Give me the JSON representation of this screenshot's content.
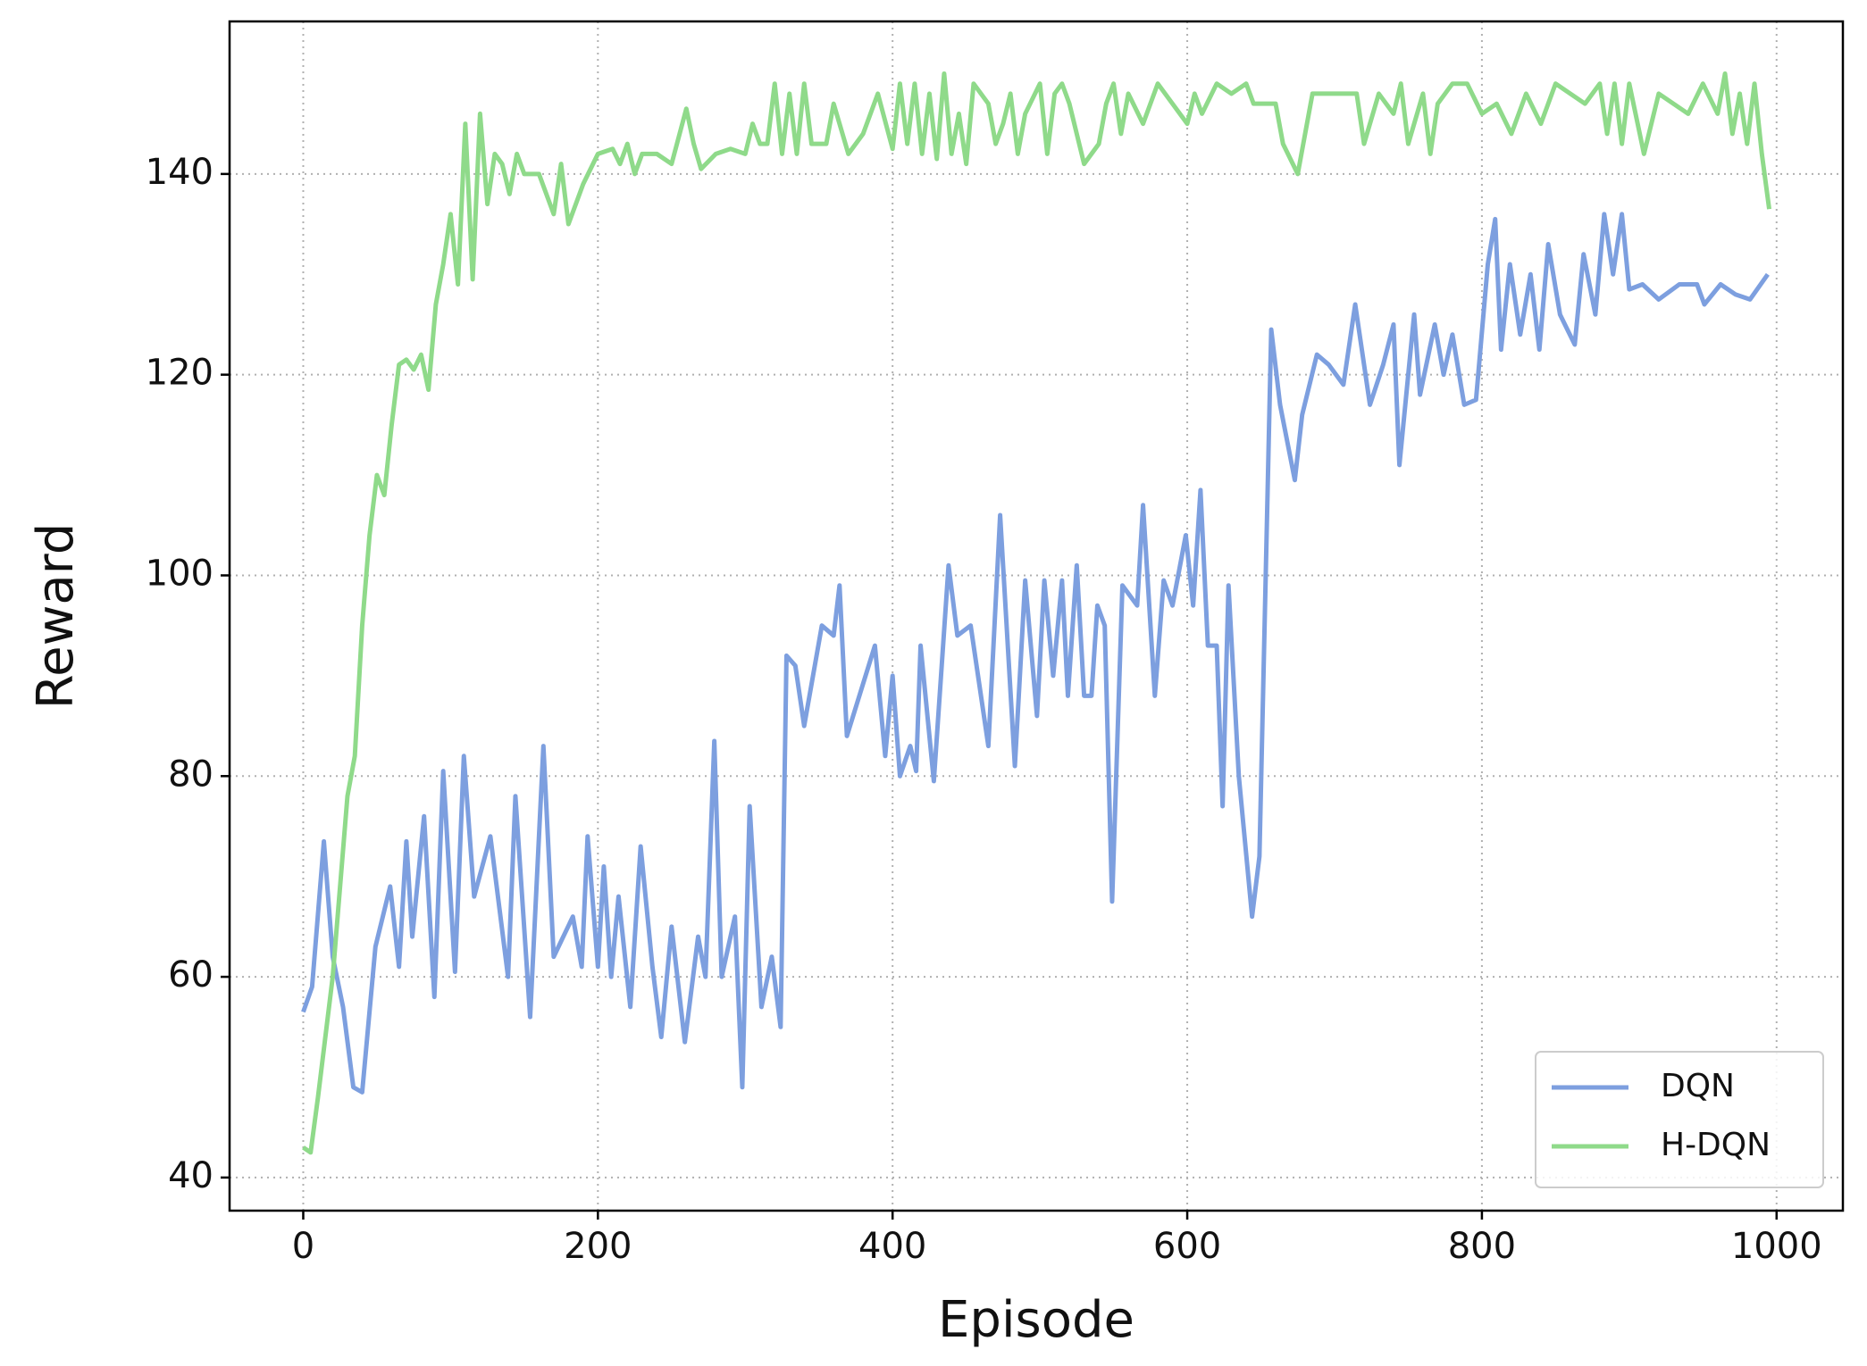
{
  "chart_data": {
    "type": "line",
    "xlabel": "Episode",
    "ylabel": "Reward",
    "xlim": [
      -50,
      1045
    ],
    "ylim": [
      36.7,
      155.2
    ],
    "xticks": [
      0,
      200,
      400,
      600,
      800,
      1000
    ],
    "yticks": [
      40,
      60,
      80,
      100,
      120,
      140
    ],
    "grid": true,
    "legend": "lower right",
    "series": [
      {
        "name": "DQN",
        "color": "#7d9fdf",
        "x": [
          0,
          6,
          14,
          20,
          27,
          34,
          40,
          49,
          59,
          65,
          70,
          74,
          82,
          89,
          95,
          103,
          109,
          116,
          127,
          139,
          144,
          154,
          163,
          170,
          183,
          189,
          193,
          200,
          204,
          209,
          214,
          222,
          229,
          237,
          243,
          250,
          259,
          268,
          273,
          279,
          284,
          293,
          298,
          303,
          311,
          318,
          324,
          328,
          334,
          340,
          352,
          360,
          364,
          369,
          388,
          395,
          400,
          405,
          412,
          416,
          419,
          428,
          438,
          444,
          453,
          465,
          473,
          483,
          490,
          498,
          503,
          509,
          515,
          519,
          525,
          530,
          535,
          539,
          544,
          549,
          556,
          566,
          570,
          578,
          584,
          590,
          599,
          604,
          609,
          614,
          620,
          624,
          628,
          635,
          644,
          649,
          657,
          663,
          673,
          678,
          688,
          696,
          706,
          714,
          724,
          733,
          740,
          744,
          754,
          758,
          768,
          774,
          780,
          788,
          796,
          804,
          809,
          813,
          819,
          826,
          833,
          839,
          845,
          853,
          863,
          869,
          877,
          883,
          889,
          895,
          900,
          909,
          920,
          934,
          946,
          951,
          962,
          972,
          982,
          994
        ],
        "values": [
          56.5,
          59,
          73.5,
          62,
          57,
          49,
          48.5,
          63,
          69,
          61,
          73.5,
          64,
          76,
          58,
          80.5,
          60.5,
          82,
          68,
          74,
          60,
          78,
          56,
          83,
          62,
          66,
          61,
          74,
          61,
          71,
          60,
          68,
          57,
          73,
          61,
          54,
          65,
          53.5,
          64,
          60,
          83.5,
          60,
          66,
          49,
          77,
          57,
          62,
          55,
          92,
          91,
          85,
          95,
          94,
          99,
          84,
          93,
          82,
          90,
          80,
          83,
          80.5,
          93,
          79.5,
          101,
          94,
          95,
          83,
          106,
          81,
          99.5,
          86,
          99.5,
          90,
          99.5,
          88,
          101,
          88,
          88,
          97,
          95,
          67.5,
          99,
          97,
          107,
          88,
          99.5,
          97,
          104,
          97,
          108.5,
          93,
          93,
          77,
          99,
          80,
          66,
          72,
          124.5,
          117,
          109.5,
          116,
          122,
          121,
          119,
          127,
          117,
          121,
          125,
          111,
          126,
          118,
          125,
          120,
          124,
          117,
          117.5,
          131,
          135.5,
          122.5,
          131,
          124,
          130,
          122.5,
          133,
          126,
          123,
          132,
          126,
          136,
          130,
          136,
          128.5,
          129,
          127.5,
          129,
          129,
          127,
          129,
          128,
          127.5,
          130
        ]
      },
      {
        "name": "H-DQN",
        "color": "#8fda8a",
        "x": [
          0,
          5,
          10,
          20,
          30,
          35,
          40,
          45,
          50,
          55,
          60,
          65,
          70,
          75,
          80,
          85,
          90,
          95,
          100,
          105,
          110,
          115,
          120,
          125,
          130,
          135,
          140,
          145,
          150,
          160,
          170,
          175,
          180,
          190,
          200,
          210,
          215,
          220,
          225,
          230,
          240,
          250,
          260,
          265,
          270,
          280,
          290,
          300,
          305,
          310,
          315,
          320,
          325,
          330,
          335,
          340,
          345,
          355,
          360,
          370,
          380,
          390,
          400,
          405,
          410,
          415,
          420,
          425,
          430,
          435,
          440,
          445,
          450,
          455,
          465,
          470,
          475,
          480,
          485,
          490,
          500,
          505,
          510,
          515,
          520,
          530,
          540,
          545,
          550,
          555,
          560,
          570,
          580,
          590,
          600,
          605,
          610,
          620,
          630,
          640,
          645,
          660,
          665,
          675,
          685,
          695,
          705,
          715,
          720,
          730,
          740,
          745,
          750,
          760,
          765,
          770,
          780,
          790,
          800,
          810,
          820,
          830,
          840,
          850,
          860,
          870,
          880,
          885,
          890,
          895,
          900,
          910,
          920,
          930,
          940,
          950,
          960,
          965,
          970,
          975,
          980,
          985,
          990,
          995
        ],
        "values": [
          43,
          42.5,
          48,
          60,
          78,
          82,
          95,
          104,
          110,
          108,
          115,
          121,
          121.5,
          120.5,
          122,
          118.5,
          127,
          131,
          136,
          129,
          145,
          129.5,
          146,
          137,
          142,
          141,
          138,
          142,
          140,
          140,
          136,
          141,
          135,
          139,
          142,
          142.5,
          141,
          143,
          140,
          142,
          142,
          141,
          146.5,
          143,
          140.5,
          142,
          142.5,
          142,
          145,
          143,
          143,
          149,
          142,
          148,
          142,
          149,
          143,
          143,
          147,
          142,
          144,
          148,
          142.5,
          149,
          143,
          149,
          142,
          148,
          141.5,
          150,
          142,
          146,
          141,
          149,
          147,
          143,
          145,
          148,
          142,
          146,
          149,
          142,
          148,
          149,
          147,
          141,
          143,
          147,
          149,
          144,
          148,
          145,
          149,
          147,
          145,
          148,
          146,
          149,
          148,
          149,
          147,
          147,
          143,
          140,
          148,
          148,
          148,
          148,
          143,
          148,
          146,
          149,
          143,
          148,
          142,
          147,
          149,
          149,
          146,
          147,
          144,
          148,
          145,
          149,
          148,
          147,
          149,
          144,
          149,
          143,
          149,
          142,
          148,
          147,
          146,
          149,
          146,
          150,
          144,
          148,
          143,
          149,
          142,
          136.5
        ]
      }
    ]
  }
}
